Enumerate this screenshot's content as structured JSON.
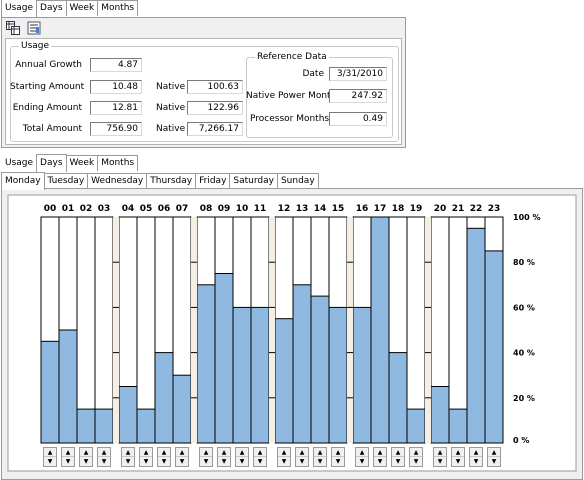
{
  "top": {
    "tabs": [
      "Usage",
      "Days",
      "Week",
      "Months"
    ],
    "active_tab": "Usage",
    "usage_group": {
      "title": "Usage",
      "annual_growth_label": "Annual Growth",
      "annual_growth": "4.87",
      "starting_amount_label": "Starting Amount",
      "starting_amount": "10.48",
      "ending_amount_label": "Ending Amount",
      "ending_amount": "12.81",
      "total_amount_label": "Total Amount",
      "total_amount": "756.90",
      "native_label": "Native",
      "native_starting": "100.63",
      "native_ending": "122.96",
      "native_total": "7,266.17"
    },
    "reference_group": {
      "title": "Reference Data",
      "date_label": "Date",
      "date": "3/31/2010",
      "native_power_months_label": "Native Power Months",
      "native_power_months": "247.92",
      "processor_months_label": "Processor Months",
      "processor_months": "0.49"
    },
    "toolbar_icons": [
      "copy-grid-icon",
      "chart-settings-icon"
    ]
  },
  "bottom": {
    "tabs": [
      "Usage",
      "Days",
      "Week",
      "Months"
    ],
    "active_tab": "Days",
    "day_tabs": [
      "Monday",
      "Tuesday",
      "Wednesday",
      "Thursday",
      "Friday",
      "Saturday",
      "Sunday"
    ],
    "active_day": "Monday"
  },
  "chart_data": {
    "type": "bar",
    "categories": [
      "00",
      "01",
      "02",
      "03",
      "04",
      "05",
      "06",
      "07",
      "08",
      "09",
      "10",
      "11",
      "12",
      "13",
      "14",
      "15",
      "16",
      "17",
      "18",
      "19",
      "20",
      "21",
      "22",
      "23"
    ],
    "values": [
      45,
      50,
      15,
      15,
      25,
      15,
      40,
      30,
      70,
      75,
      60,
      60,
      55,
      70,
      65,
      60,
      60,
      100,
      40,
      15,
      25,
      15,
      95,
      85
    ],
    "y_ticks": [
      "0 %",
      "20 %",
      "40 %",
      "60 %",
      "80 %",
      "100 %"
    ],
    "ylim": [
      0,
      100
    ],
    "bar_color": "#8fb9e0",
    "empty_color": "#ffffff",
    "separator_color": "#f4efe2"
  }
}
